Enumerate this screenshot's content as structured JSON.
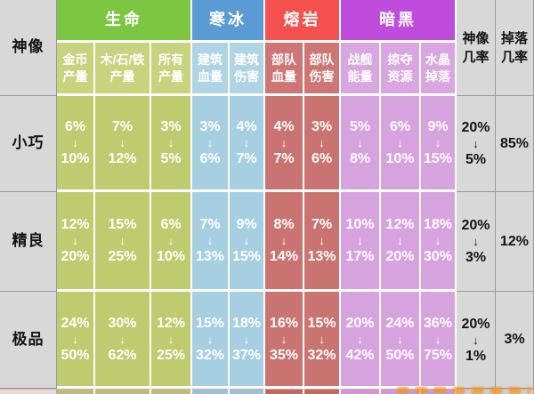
{
  "chart_data": {
    "type": "table",
    "title": "",
    "corner_header": "神像",
    "arrow": "↓",
    "groups": [
      {
        "label": "生命",
        "span": 3
      },
      {
        "label": "寒冰",
        "span": 2
      },
      {
        "label": "熔岩",
        "span": 2
      },
      {
        "label": "暗黑",
        "span": 3
      }
    ],
    "sub_headers": [
      [
        "金币",
        "产量"
      ],
      [
        "木/石/铁",
        "产量"
      ],
      [
        "所有",
        "产量"
      ],
      [
        "建筑",
        "血量"
      ],
      [
        "建筑",
        "伤害"
      ],
      [
        "部队",
        "血量"
      ],
      [
        "部队",
        "伤害"
      ],
      [
        "战舰",
        "能量"
      ],
      [
        "掠夺",
        "资源"
      ],
      [
        "水晶",
        "掉落"
      ]
    ],
    "right_headers": [
      [
        "神像",
        "几率"
      ],
      [
        "掉落",
        "几率"
      ]
    ],
    "rows": [
      {
        "label": "小巧",
        "ranges": [
          [
            "6%",
            "10%"
          ],
          [
            "7%",
            "12%"
          ],
          [
            "3%",
            "5%"
          ],
          [
            "3%",
            "6%"
          ],
          [
            "4%",
            "7%"
          ],
          [
            "4%",
            "7%"
          ],
          [
            "3%",
            "6%"
          ],
          [
            "5%",
            "8%"
          ],
          [
            "6%",
            "10%"
          ],
          [
            "9%",
            "15%"
          ]
        ],
        "idol_chance": [
          "20%",
          "5%"
        ],
        "drop_chance": "85%"
      },
      {
        "label": "精良",
        "ranges": [
          [
            "12%",
            "20%"
          ],
          [
            "15%",
            "25%"
          ],
          [
            "6%",
            "10%"
          ],
          [
            "7%",
            "13%"
          ],
          [
            "9%",
            "15%"
          ],
          [
            "8%",
            "14%"
          ],
          [
            "7%",
            "13%"
          ],
          [
            "10%",
            "17%"
          ],
          [
            "12%",
            "20%"
          ],
          [
            "18%",
            "30%"
          ]
        ],
        "idol_chance": [
          "20%",
          "3%"
        ],
        "drop_chance": "12%"
      },
      {
        "label": "极品",
        "ranges": [
          [
            "24%",
            "50%"
          ],
          [
            "30%",
            "62%"
          ],
          [
            "12%",
            "25%"
          ],
          [
            "15%",
            "32%"
          ],
          [
            "18%",
            "37%"
          ],
          [
            "16%",
            "35%"
          ],
          [
            "15%",
            "32%"
          ],
          [
            "20%",
            "42%"
          ],
          [
            "24%",
            "50%"
          ],
          [
            "36%",
            "75%"
          ]
        ],
        "idol_chance": [
          "20%",
          "1%"
        ],
        "drop_chance": "3%"
      }
    ],
    "colors": {
      "group_headers": [
        "#7cc642",
        "#5b9bd5",
        "#f4514e",
        "#c04cde"
      ],
      "sub_header_tints": [
        "#c8d37e",
        "#afd4e6",
        "#ce7674",
        "#daa6e2"
      ],
      "data_cell_tints": [
        "#bfcb6f",
        "#a7cfe2",
        "#ca7471",
        "#d7a3de"
      ],
      "gray_cell": "#d8d8d8",
      "watermark_orange": "#ee9628"
    },
    "layout_hints": {
      "grid": "on",
      "legend_position": "none"
    }
  }
}
